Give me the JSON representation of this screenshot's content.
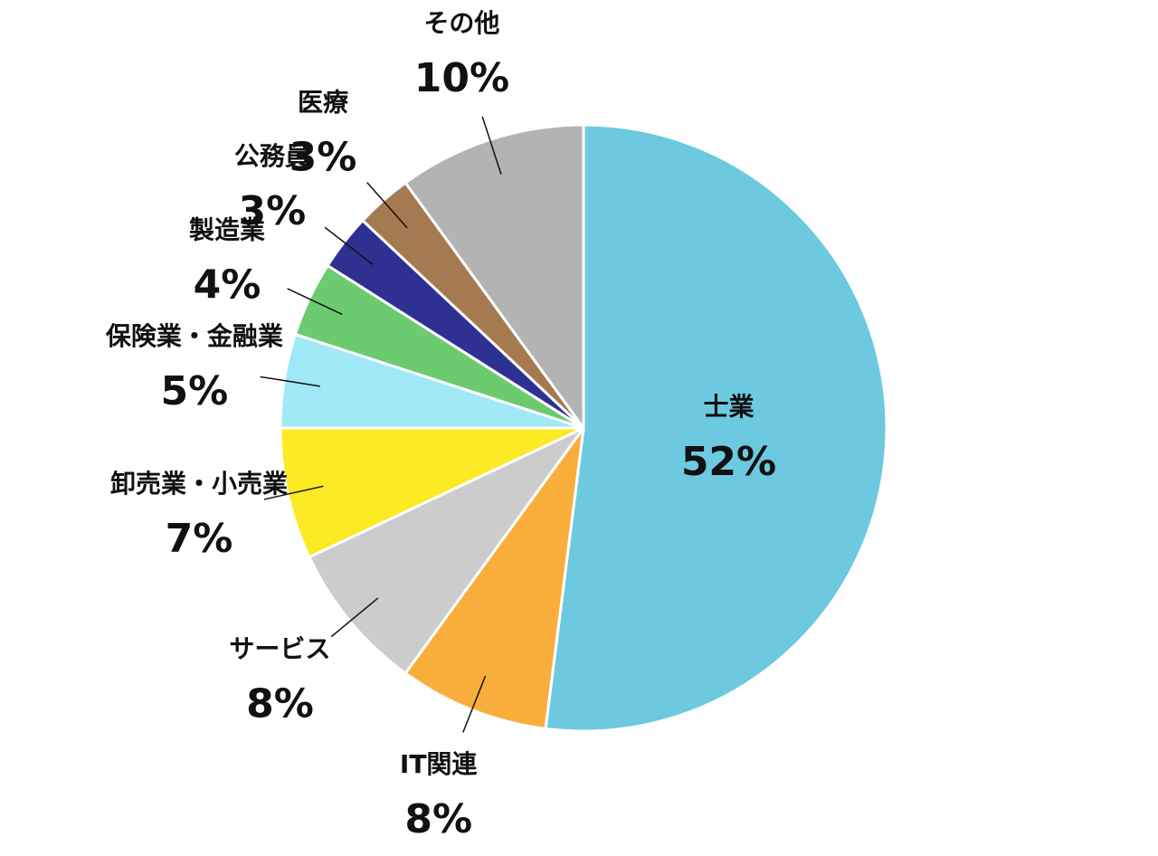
{
  "chart_data": {
    "type": "pie",
    "categories": [
      "士業",
      "IT関連",
      "サービス",
      "卸売業・小売業",
      "保険業・金融業",
      "製造業",
      "公務員",
      "医療",
      "その他"
    ],
    "values": [
      52,
      8,
      8,
      7,
      5,
      4,
      3,
      3,
      10
    ],
    "value_labels": [
      "52%",
      "8%",
      "8%",
      "7%",
      "5%",
      "4%",
      "3%",
      "3%",
      "10%"
    ],
    "colors": [
      "#6cc9e0",
      "#f9ae3c",
      "#cccccc",
      "#fbea24",
      "#a0e9f7",
      "#6ccb6e",
      "#2e3092",
      "#a57a50",
      "#b3b3b3"
    ]
  }
}
